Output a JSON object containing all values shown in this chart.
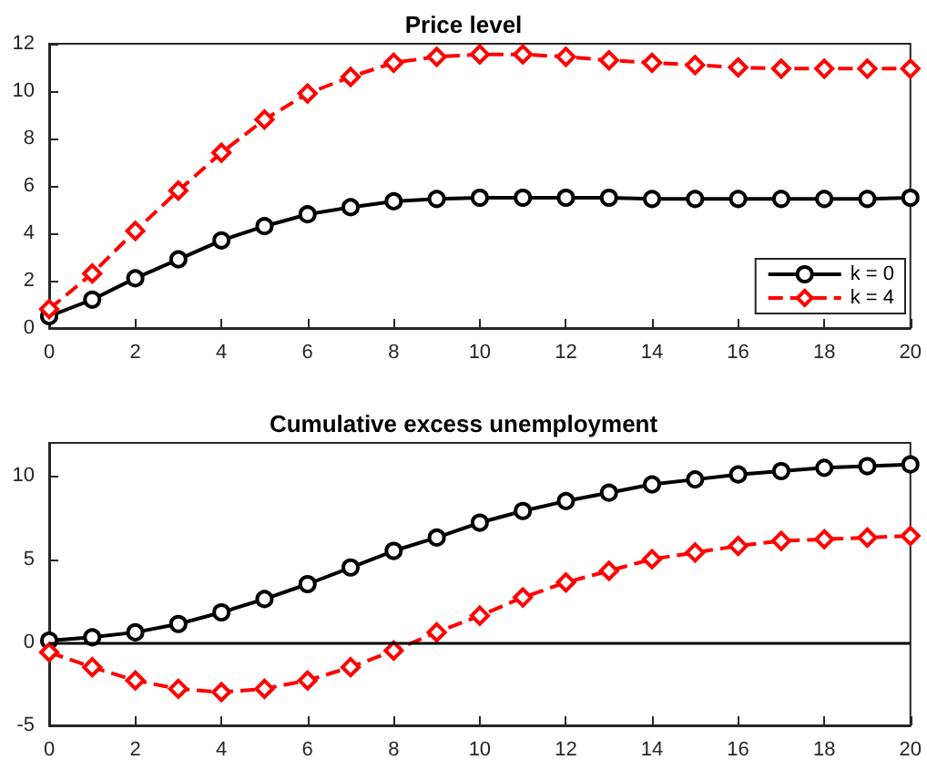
{
  "chart_data": [
    {
      "type": "line",
      "title": "Price level",
      "x": [
        0,
        1,
        2,
        3,
        4,
        5,
        6,
        7,
        8,
        9,
        10,
        11,
        12,
        13,
        14,
        15,
        16,
        17,
        18,
        19,
        20
      ],
      "xlim": [
        0,
        20
      ],
      "xticks": [
        0,
        2,
        4,
        6,
        8,
        10,
        12,
        14,
        16,
        18,
        20
      ],
      "ylim": [
        0,
        12
      ],
      "yticks": [
        0,
        2,
        4,
        6,
        8,
        10,
        12
      ],
      "grid": false,
      "legend": "bottom right",
      "series": [
        {
          "name": "k = 0",
          "color": "#000000",
          "marker": "circle",
          "line_style": "solid",
          "values": [
            0.5,
            1.2,
            2.1,
            2.9,
            3.7,
            4.3,
            4.8,
            5.1,
            5.35,
            5.45,
            5.5,
            5.5,
            5.5,
            5.5,
            5.45,
            5.45,
            5.45,
            5.45,
            5.45,
            5.45,
            5.5
          ]
        },
        {
          "name": "k = 4",
          "color": "#ff0000",
          "marker": "diamond",
          "line_style": "dashed",
          "values": [
            0.8,
            2.3,
            4.1,
            5.8,
            7.4,
            8.8,
            9.9,
            10.6,
            11.2,
            11.45,
            11.55,
            11.55,
            11.45,
            11.3,
            11.2,
            11.1,
            11.0,
            10.95,
            10.95,
            10.95,
            10.95
          ]
        }
      ]
    },
    {
      "type": "line",
      "title": "Cumulative excess unemployment",
      "x": [
        0,
        1,
        2,
        3,
        4,
        5,
        6,
        7,
        8,
        9,
        10,
        11,
        12,
        13,
        14,
        15,
        16,
        17,
        18,
        19,
        20
      ],
      "xlim": [
        0,
        20
      ],
      "xticks": [
        0,
        2,
        4,
        6,
        8,
        10,
        12,
        14,
        16,
        18,
        20
      ],
      "ylim": [
        -5,
        12
      ],
      "yticks": [
        -5,
        0,
        5,
        10
      ],
      "grid": false,
      "legend": false,
      "ref_lines": [
        {
          "axis": "y",
          "value": 0,
          "color": "#000000",
          "line_style": "solid"
        }
      ],
      "series": [
        {
          "color": "#000000",
          "marker": "circle",
          "line_style": "solid",
          "values": [
            0.1,
            0.3,
            0.6,
            1.1,
            1.8,
            2.6,
            3.5,
            4.5,
            5.5,
            6.3,
            7.2,
            7.9,
            8.5,
            9.0,
            9.5,
            9.8,
            10.1,
            10.3,
            10.5,
            10.6,
            10.7
          ]
        },
        {
          "color": "#ff0000",
          "marker": "diamond",
          "line_style": "dashed",
          "values": [
            -0.6,
            -1.5,
            -2.3,
            -2.8,
            -3.0,
            -2.8,
            -2.3,
            -1.5,
            -0.5,
            0.6,
            1.6,
            2.7,
            3.6,
            4.3,
            5.0,
            5.4,
            5.8,
            6.1,
            6.2,
            6.3,
            6.4
          ]
        }
      ]
    }
  ]
}
